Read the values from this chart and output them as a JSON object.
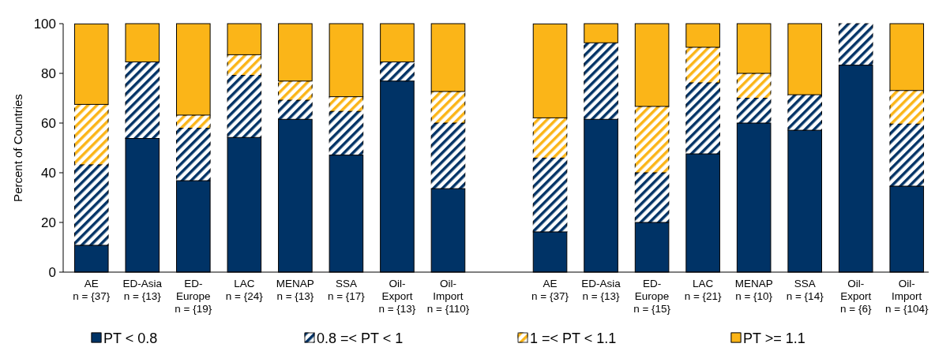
{
  "chart_data": {
    "type": "bar",
    "stacked": true,
    "ylabel": "Percent of Countries",
    "ylim": [
      0,
      100
    ],
    "yticks": [
      0,
      20,
      40,
      60,
      80,
      100
    ],
    "grid": false,
    "legend": "bottom",
    "categories": [
      "AE\nn = {37}",
      "ED-Asia\nn = {13}",
      "ED-\nEurope\nn = {19}",
      "LAC\nn = {24}",
      "MENAP\nn = {13}",
      "SSA\nn = {17}",
      "Oil-\nExport\nn = {13}",
      "Oil-\nImport\nn = {110}",
      null,
      "AE\nn = {37}",
      "ED-Asia\nn = {13}",
      "ED-\nEurope\nn = {15}",
      "LAC\nn = {21}",
      "MENAP\nn = {10}",
      "SSA\nn = {14}",
      "Oil-\nExport\nn = {6}",
      "Oil-\nImport\nn = {104}"
    ],
    "series": [
      {
        "name": "PT < 0.8",
        "color": "#003366",
        "values": [
          10.8,
          53.8,
          36.8,
          54.2,
          61.5,
          47.1,
          76.9,
          33.6,
          null,
          16.2,
          61.5,
          20,
          47.6,
          60,
          57.1,
          83.3,
          34.6
        ]
      },
      {
        "name": "0.8 =< PT < 1",
        "color": "#003366",
        "values": [
          32.4,
          30.8,
          21.1,
          25,
          7.7,
          17.6,
          7.7,
          26.4,
          null,
          29.7,
          30.8,
          20,
          28.6,
          10,
          14.3,
          16.7,
          25
        ]
      },
      {
        "name": "1 =< PT < 1.1",
        "color": "#fbb518",
        "values": [
          24.3,
          0,
          5.3,
          8.3,
          7.7,
          5.9,
          0,
          12.7,
          null,
          16.2,
          0,
          26.7,
          14.3,
          10,
          0,
          0,
          13.5
        ]
      },
      {
        "name": "PT >= 1.1",
        "color": "#fbb518",
        "values": [
          32.4,
          15.4,
          36.8,
          12.5,
          23.1,
          29.4,
          15.4,
          27.3,
          null,
          37.8,
          7.7,
          33.3,
          9.5,
          20,
          28.6,
          0,
          26.9
        ]
      }
    ]
  }
}
